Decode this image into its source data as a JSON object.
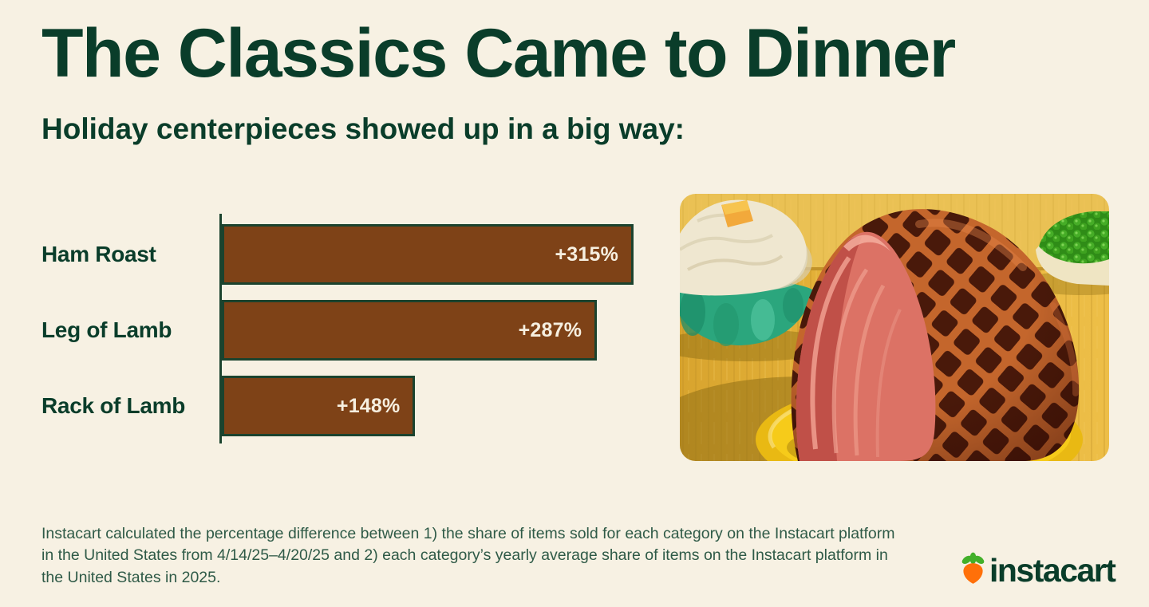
{
  "header": {
    "title": "The Classics Came to Dinner",
    "subtitle": "Holiday centerpieces showed up in a big way:"
  },
  "chart_data": {
    "type": "bar",
    "orientation": "horizontal",
    "categories": [
      "Ham Roast",
      "Leg of Lamb",
      "Rack of Lamb"
    ],
    "values": [
      315,
      287,
      148
    ],
    "value_labels": [
      "+315%",
      "+287%",
      "+148%"
    ],
    "xlim": [
      0,
      315
    ],
    "grid": false,
    "legend": false,
    "bar_color": "#7E4217",
    "bar_border_color": "#1B432E",
    "axis_color": "#1B432E",
    "category_label_color": "#0A3D2A",
    "value_label_color": "#F6EFE0"
  },
  "photo": {
    "description": "Spiral-cut glazed ham on a yellow plate, green glass bowl of mashed potatoes topped with butter, and a bowl of green peas on a yellow tablecloth"
  },
  "footnote": {
    "text": "Instacart calculated the percentage difference between 1) the share of items sold for each category on the Instacart platform in the United States from 4/14/25–4/20/25 and 2) each category’s yearly average share of items on the Instacart platform in the United States in 2025."
  },
  "logo": {
    "wordmark": "instacart",
    "wordmark_color": "#0A3D2A",
    "carrot_orange": "#FF7009",
    "carrot_leaf_green": "#43B02A"
  },
  "theme": {
    "background": "#F7F1E3",
    "heading_color": "#0A3D2A",
    "footnote_color": "#2F5A47"
  }
}
